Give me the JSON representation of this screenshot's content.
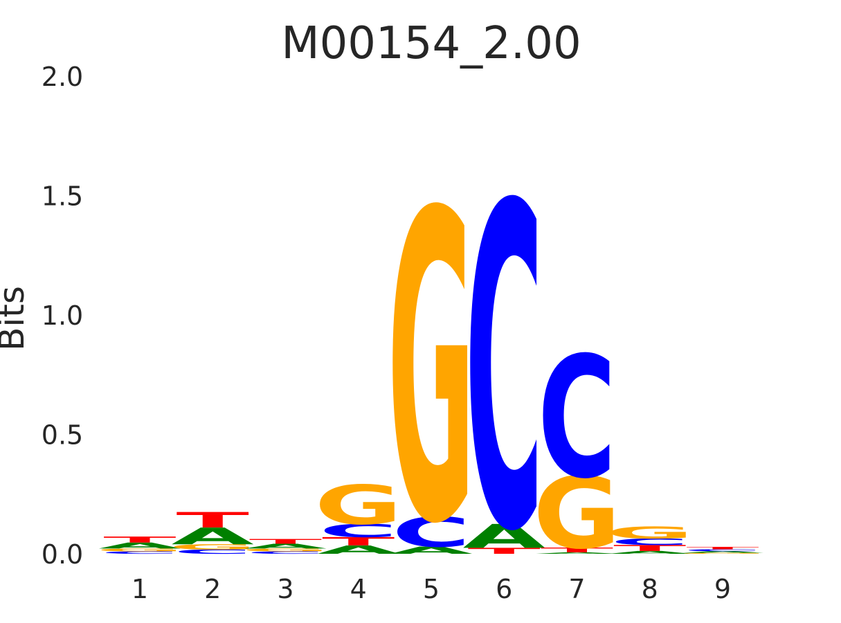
{
  "chart_data": {
    "type": "sequence-logo",
    "title": "M00154_2.00",
    "ylabel": "Bits",
    "ylim": [
      0,
      2
    ],
    "yticks": [
      "0.0",
      "0.5",
      "1.0",
      "1.5",
      "2.0"
    ],
    "positions": [
      "1",
      "2",
      "3",
      "4",
      "5",
      "6",
      "7",
      "8",
      "9"
    ],
    "colors": {
      "A": "#008000",
      "C": "#0000ff",
      "G": "#ffa500",
      "T": "#ff0000"
    },
    "columns": [
      [
        {
          "base": "C",
          "bits": 0.01
        },
        {
          "base": "G",
          "bits": 0.012
        },
        {
          "base": "A",
          "bits": 0.025
        },
        {
          "base": "T",
          "bits": 0.025
        }
      ],
      [
        {
          "base": "C",
          "bits": 0.018
        },
        {
          "base": "G",
          "bits": 0.022
        },
        {
          "base": "A",
          "bits": 0.07
        },
        {
          "base": "T",
          "bits": 0.065
        }
      ],
      [
        {
          "base": "C",
          "bits": 0.01
        },
        {
          "base": "G",
          "bits": 0.012
        },
        {
          "base": "A",
          "bits": 0.02
        },
        {
          "base": "T",
          "bits": 0.02
        }
      ],
      [
        {
          "base": "A",
          "bits": 0.035
        },
        {
          "base": "T",
          "bits": 0.035
        },
        {
          "base": "C",
          "bits": 0.055
        },
        {
          "base": "G",
          "bits": 0.165
        }
      ],
      [
        {
          "base": "A",
          "bits": 0.03
        },
        {
          "base": "C",
          "bits": 0.125
        },
        {
          "base": "G",
          "bits": 1.295
        }
      ],
      [
        {
          "base": "T",
          "bits": 0.025
        },
        {
          "base": "A",
          "bits": 0.1
        },
        {
          "base": "C",
          "bits": 1.355
        }
      ],
      [
        {
          "base": "A",
          "bits": 0.006
        },
        {
          "base": "T",
          "bits": 0.02
        },
        {
          "base": "G",
          "bits": 0.3
        },
        {
          "base": "C",
          "bits": 0.51
        }
      ],
      [
        {
          "base": "A",
          "bits": 0.012
        },
        {
          "base": "T",
          "bits": 0.025
        },
        {
          "base": "C",
          "bits": 0.027
        },
        {
          "base": "G",
          "bits": 0.05
        }
      ],
      [
        {
          "base": "G",
          "bits": 0.004
        },
        {
          "base": "A",
          "bits": 0.007
        },
        {
          "base": "C",
          "bits": 0.008
        },
        {
          "base": "T",
          "bits": 0.01
        }
      ]
    ]
  }
}
